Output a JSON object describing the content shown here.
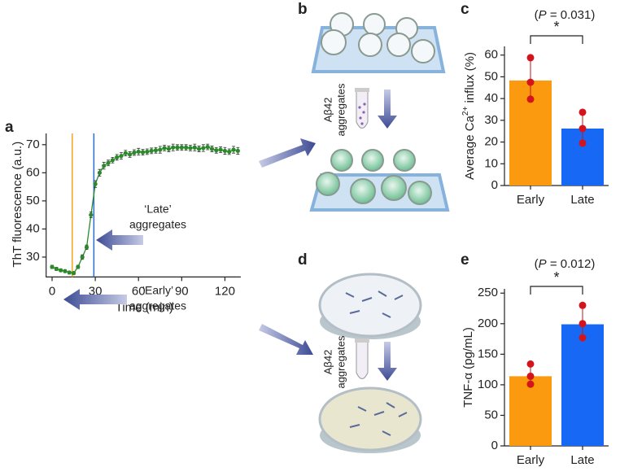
{
  "panel_labels": [
    "a",
    "b",
    "c",
    "d",
    "e"
  ],
  "diagram_b": {
    "caption": [
      "Aβ42",
      "aggregates"
    ]
  },
  "diagram_d": {
    "caption": [
      "Aβ42",
      "aggregates"
    ]
  },
  "chart_data": [
    {
      "type": "line",
      "x_label": "Time (min)",
      "y_label": "ThT fluorescence (a.u.)",
      "xlim": [
        -3,
        131
      ],
      "ylim": [
        23.5,
        74
      ],
      "xticks": [
        0,
        30,
        60,
        90,
        120
      ],
      "yticks": [
        30,
        40,
        50,
        60,
        70
      ],
      "vlines": [
        {
          "x": 14,
          "color": "#f5a31c"
        },
        {
          "x": 29,
          "color": "#2a6fd0"
        }
      ],
      "annotations": [
        {
          "text": [
            "‘Late’",
            "aggregates"
          ]
        },
        {
          "text": [
            "‘Early’",
            "aggregates"
          ]
        }
      ],
      "series": [
        {
          "color": "#2a8a2a",
          "x": [
            0,
            3,
            6,
            9,
            12,
            15,
            18,
            21,
            24,
            27,
            30,
            33,
            36,
            39,
            42,
            45,
            48,
            51,
            54,
            57,
            60,
            63,
            66,
            69,
            72,
            75,
            78,
            81,
            84,
            87,
            90,
            93,
            96,
            99,
            102,
            105,
            108,
            111,
            114,
            117,
            120,
            123,
            126,
            129
          ],
          "values": [
            26.5,
            25.8,
            25.3,
            25,
            24.5,
            24.3,
            26.5,
            30,
            33.5,
            45,
            56,
            60,
            62.5,
            63.5,
            64.5,
            65.5,
            66,
            67,
            66.5,
            67.2,
            67.5,
            67.3,
            67.5,
            67.8,
            68,
            68.2,
            68.8,
            68.5,
            69,
            69,
            69,
            69,
            68.8,
            69,
            68.5,
            68.8,
            69.2,
            68.5,
            68,
            68.2,
            67.8,
            67.5,
            68.2,
            67.8
          ],
          "errors": [
            0.6,
            0.6,
            0.5,
            0.5,
            0.5,
            0.5,
            0.6,
            0.8,
            0.8,
            1,
            1.2,
            1.2,
            1.2,
            1,
            1,
            1,
            1.2,
            1,
            1,
            1,
            1.2,
            1,
            1,
            1,
            1,
            1.2,
            1,
            1,
            1.2,
            1,
            1,
            1,
            1,
            1.2,
            1,
            1.2,
            1,
            1,
            1,
            1,
            1.2,
            1,
            1.2,
            1.2
          ]
        }
      ]
    },
    {
      "type": "bar",
      "title": [
        "(",
        "P",
        " = 0.031)"
      ],
      "significance": "*",
      "y_label": [
        "Average Ca",
        "2+",
        " influx (%)"
      ],
      "categories": [
        "Early",
        "Late"
      ],
      "values": [
        48.3,
        26.2
      ],
      "colors": [
        "#fb9a0e",
        "#1769f5"
      ],
      "points": [
        [
          58.8,
          47.5,
          39.7
        ],
        [
          33.7,
          26.2,
          19.5
        ]
      ],
      "ylim": [
        0,
        64
      ],
      "yticks": [
        0,
        10,
        20,
        30,
        40,
        50,
        60
      ]
    },
    {
      "type": "bar",
      "title": [
        "(",
        "P",
        " = 0.012)"
      ],
      "significance": "*",
      "y_label": [
        "TNF-α (pg/mL)"
      ],
      "categories": [
        "Early",
        "Late"
      ],
      "values": [
        114,
        199
      ],
      "colors": [
        "#fb9a0e",
        "#1769f5"
      ],
      "points": [
        [
          134,
          114,
          101
        ],
        [
          230,
          200,
          177
        ]
      ],
      "ylim": [
        0,
        257
      ],
      "yticks": [
        0,
        50,
        100,
        150,
        200,
        250
      ]
    }
  ]
}
